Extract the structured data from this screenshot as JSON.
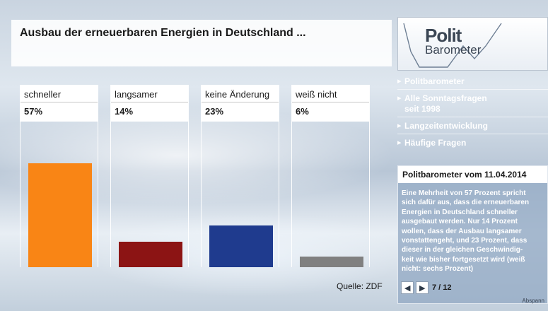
{
  "title": "Ausbau der erneuerbaren Energien in Deutschland ...",
  "source": "Quelle: ZDF",
  "chart_data": {
    "type": "bar",
    "title": "Ausbau der erneuerbaren Energien in Deutschland ...",
    "categories": [
      "schneller",
      "langsamer",
      "keine Änderung",
      "weiß nicht"
    ],
    "values": [
      57,
      14,
      23,
      6
    ],
    "value_labels": [
      "57%",
      "14%",
      "23%",
      "6%"
    ],
    "colors": [
      "#f98515",
      "#8c1414",
      "#1f3b8e",
      "#808080"
    ],
    "ylim": [
      0,
      100
    ],
    "xlabel": "",
    "ylabel": "",
    "grid": false
  },
  "sidebar": {
    "logo_line1": "Polit",
    "logo_line2": "Barometer",
    "nav": [
      {
        "label": "Politbarometer"
      },
      {
        "label": "Alle Sonntagsfragen\n seit 1998"
      },
      {
        "label": "Langzeitentwicklung"
      },
      {
        "label": "Häufige Fragen"
      }
    ],
    "info_title": "Politbarometer vom 11.04.2014",
    "info_text": "Eine Mehrheit von 57 Prozent spricht\nsich dafür aus, dass die erneuerbaren\n Energien in Deutschland schneller\nausgebaut werden. Nur 14 Prozent\nwollen, dass der Ausbau langsamer\nvonstattengeht, und 23 Prozent, dass\ndieser in der gleichen Geschwindig-\nkeit wie bisher fortgesetzt wird (weiß\nnicht: sechs Prozent)",
    "page_indicator": "7 / 12",
    "prev_icon": "chevron-left-icon",
    "next_icon": "chevron-right-icon",
    "abspann": "Abspann"
  }
}
